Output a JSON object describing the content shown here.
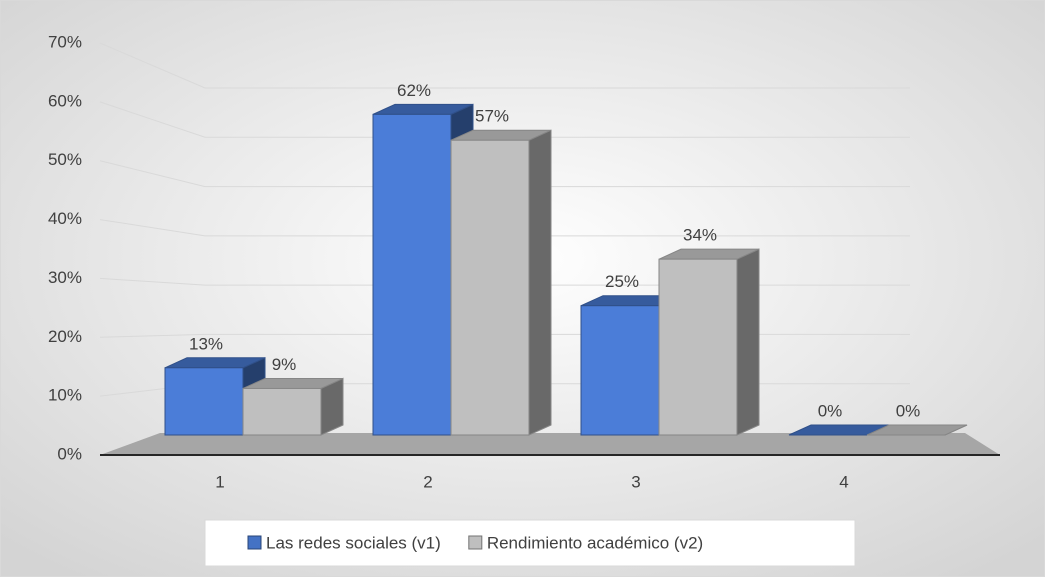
{
  "chart_data": {
    "type": "bar3d",
    "categories": [
      "1",
      "2",
      "3",
      "4"
    ],
    "series": [
      {
        "name": "Las redes sociales (v1)",
        "color": "#4472c4",
        "values": [
          13,
          62,
          25,
          0
        ],
        "value_labels": [
          "13%",
          "62%",
          "25%",
          "0%"
        ]
      },
      {
        "name": "Rendimiento académico (v2)",
        "color": "#bfbfbf",
        "values": [
          9,
          57,
          34,
          0
        ],
        "value_labels": [
          "9%",
          "57%",
          "34%",
          "0%"
        ]
      }
    ],
    "ylim": [
      0,
      70
    ],
    "yticks": [
      {
        "value": 0,
        "label": "0%"
      },
      {
        "value": 10,
        "label": "10%"
      },
      {
        "value": 20,
        "label": "20%"
      },
      {
        "value": 30,
        "label": "30%"
      },
      {
        "value": 40,
        "label": "40%"
      },
      {
        "value": 50,
        "label": "50%"
      },
      {
        "value": 60,
        "label": "60%"
      },
      {
        "value": 70,
        "label": "70%"
      }
    ],
    "grid": true,
    "legend": "bottom"
  }
}
